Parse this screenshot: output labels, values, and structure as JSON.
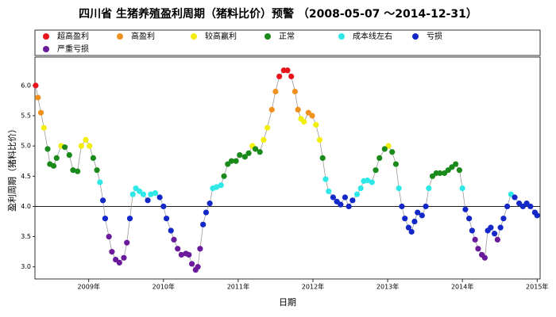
{
  "chart_data": {
    "type": "scatter-line",
    "title": "四川省 生猪养殖盈利周期（猪料比价）预警 （2008-05-07 ～2014-12-31）",
    "x_label": "日期",
    "y_label": "盈利周期（猪料比价）",
    "xlim": [
      2008.28,
      2015.04
    ],
    "ylim": [
      2.8,
      6.47
    ],
    "xticks": [
      {
        "value": 2009,
        "label": "2009年"
      },
      {
        "value": 2010,
        "label": "2010年"
      },
      {
        "value": 2011,
        "label": "2011年"
      },
      {
        "value": 2012,
        "label": "2012年"
      },
      {
        "value": 2013,
        "label": "2013年"
      },
      {
        "value": 2014,
        "label": "2014年"
      },
      {
        "value": 2015,
        "label": "2015年"
      }
    ],
    "yticks": [
      {
        "value": 3,
        "label": "3.0"
      },
      3.5,
      {
        "value": 4,
        "label": "4.0"
      },
      4.5,
      {
        "value": 5,
        "label": "5.0"
      },
      5.5,
      {
        "value": 6,
        "label": "6.0"
      }
    ],
    "hline": 4,
    "line_color": "#999999",
    "series": [
      {
        "name": "超高盈利",
        "color": "#e8141c",
        "x": [
          2008.29,
          2011.55,
          2011.61,
          2011.66,
          2011.71
        ],
        "values": [
          6.0,
          6.15,
          6.25,
          6.25,
          6.15
        ]
      },
      {
        "name": "高盈利",
        "color": "#f0901e",
        "x": [
          2008.32,
          2008.36,
          2011.45,
          2011.5,
          2011.76,
          2011.8,
          2011.94,
          2011.99
        ],
        "values": [
          5.8,
          5.55,
          5.6,
          5.9,
          5.9,
          5.6,
          5.55,
          5.5
        ]
      },
      {
        "name": "较高赢利",
        "color": "#f2ee10",
        "x": [
          2008.4,
          2008.63,
          2008.9,
          2008.96,
          2009.01,
          2011.19,
          2011.34,
          2011.39,
          2011.84,
          2011.88,
          2012.04,
          2012.09,
          2013.01
        ],
        "values": [
          5.3,
          5.0,
          5.0,
          5.1,
          5.0,
          5.0,
          5.1,
          5.3,
          5.45,
          5.4,
          5.35,
          5.1,
          5.0
        ]
      },
      {
        "name": "正常",
        "color": "#1a8a1a",
        "x": [
          2008.45,
          2008.48,
          2008.53,
          2008.57,
          2008.68,
          2008.74,
          2008.79,
          2008.85,
          2009.06,
          2009.11,
          2010.81,
          2010.86,
          2010.91,
          2010.97,
          2011.02,
          2011.09,
          2011.14,
          2011.23,
          2011.29,
          2012.13,
          2012.84,
          2012.89,
          2012.96,
          2013.06,
          2013.11,
          2013.6,
          2013.65,
          2013.7,
          2013.76,
          2013.81,
          2013.86,
          2013.91,
          2013.96
        ],
        "values": [
          4.95,
          4.7,
          4.67,
          4.8,
          4.98,
          4.85,
          4.6,
          4.58,
          4.8,
          4.6,
          4.5,
          4.7,
          4.75,
          4.75,
          4.85,
          4.82,
          4.88,
          4.95,
          4.9,
          4.8,
          4.6,
          4.8,
          4.95,
          4.9,
          4.7,
          4.5,
          4.55,
          4.55,
          4.55,
          4.6,
          4.65,
          4.7,
          4.6
        ]
      },
      {
        "name": "成本线左右",
        "color": "#2ee8e8",
        "x": [
          2009.15,
          2009.59,
          2009.63,
          2009.68,
          2009.73,
          2009.83,
          2009.89,
          2010.66,
          2010.71,
          2010.77,
          2012.17,
          2012.21,
          2012.59,
          2012.64,
          2012.68,
          2012.73,
          2012.79,
          2013.15,
          2013.55,
          2014.0,
          2014.65
        ],
        "values": [
          4.4,
          4.2,
          4.3,
          4.25,
          4.2,
          4.2,
          4.22,
          4.3,
          4.32,
          4.35,
          4.45,
          4.25,
          4.2,
          4.3,
          4.42,
          4.43,
          4.4,
          4.3,
          4.3,
          4.3,
          4.2
        ]
      },
      {
        "name": "亏损",
        "color": "#1428c8",
        "x": [
          2009.19,
          2009.22,
          2009.55,
          2009.79,
          2009.95,
          2010.0,
          2010.04,
          2010.1,
          2010.53,
          2010.57,
          2010.62,
          2012.27,
          2012.32,
          2012.37,
          2012.43,
          2012.48,
          2012.53,
          2013.19,
          2013.23,
          2013.28,
          2013.32,
          2013.36,
          2013.4,
          2013.46,
          2013.51,
          2014.04,
          2014.09,
          2014.13,
          2014.34,
          2014.38,
          2014.43,
          2014.51,
          2014.55,
          2014.6,
          2014.7,
          2014.76,
          2014.81,
          2014.86,
          2014.91,
          2014.97,
          2015.0
        ],
        "values": [
          4.1,
          3.8,
          3.8,
          4.1,
          4.15,
          4.0,
          3.8,
          3.6,
          3.7,
          3.9,
          4.05,
          4.15,
          4.08,
          4.03,
          4.15,
          4.0,
          4.1,
          4.0,
          3.8,
          3.65,
          3.58,
          3.75,
          3.9,
          3.85,
          4.0,
          3.95,
          3.8,
          3.6,
          3.6,
          3.65,
          3.55,
          3.65,
          3.8,
          4.0,
          4.15,
          4.05,
          4.0,
          4.05,
          4.0,
          3.9,
          3.85
        ]
      },
      {
        "name": "严重亏损",
        "color": "#6a1a9a",
        "x": [
          2009.27,
          2009.31,
          2009.36,
          2009.41,
          2009.47,
          2009.51,
          2010.14,
          2010.19,
          2010.24,
          2010.3,
          2010.34,
          2010.38,
          2010.43,
          2010.46,
          2010.49,
          2014.17,
          2014.21,
          2014.26,
          2014.3,
          2014.47
        ],
        "values": [
          3.5,
          3.25,
          3.12,
          3.07,
          3.15,
          3.4,
          3.45,
          3.3,
          3.2,
          3.22,
          3.2,
          3.05,
          2.95,
          3.0,
          3.3,
          3.45,
          3.3,
          3.2,
          3.15,
          3.45
        ]
      }
    ]
  }
}
